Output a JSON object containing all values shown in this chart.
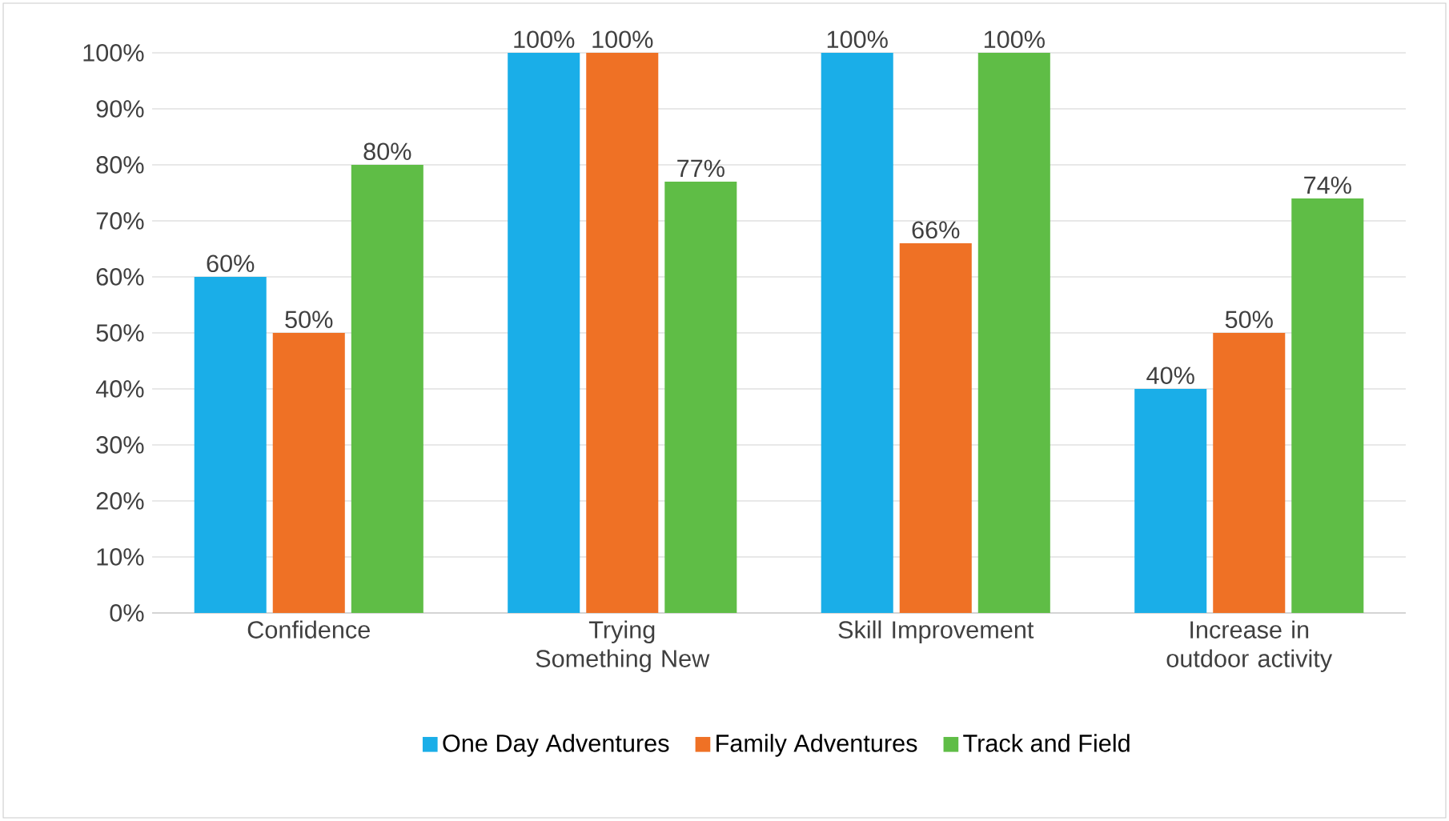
{
  "chart_data": {
    "type": "bar",
    "categories": [
      "Confidence",
      "Trying Something New",
      "Skill Improvement",
      "Increase in outdoor activity"
    ],
    "series": [
      {
        "name": "One Day Adventures",
        "color": "#1aaee8",
        "values": [
          60,
          100,
          100,
          40
        ],
        "value_labels": [
          "60%",
          "100%",
          "100%",
          "40%"
        ]
      },
      {
        "name": "Family Adventures",
        "color": "#ef7125",
        "values": [
          50,
          100,
          66,
          50
        ],
        "value_labels": [
          "50%",
          "100%",
          "66%",
          "50%"
        ]
      },
      {
        "name": "Track and Field",
        "color": "#5fbd46",
        "values": [
          80,
          77,
          100,
          74
        ],
        "value_labels": [
          "80%",
          "77%",
          "100%",
          "74%"
        ]
      }
    ],
    "ylim": [
      0,
      100
    ],
    "yticks": [
      {
        "value": 0,
        "label": "0%"
      },
      {
        "value": 10,
        "label": "10%"
      },
      {
        "value": 20,
        "label": "20%"
      },
      {
        "value": 30,
        "label": "30%"
      },
      {
        "value": 40,
        "label": "40%"
      },
      {
        "value": 50,
        "label": "50%"
      },
      {
        "value": 60,
        "label": "60%"
      },
      {
        "value": 70,
        "label": "70%"
      },
      {
        "value": 80,
        "label": "80%"
      },
      {
        "value": 90,
        "label": "90%"
      },
      {
        "value": 100,
        "label": "100%"
      }
    ],
    "grid": "y",
    "legend": "bottom"
  }
}
